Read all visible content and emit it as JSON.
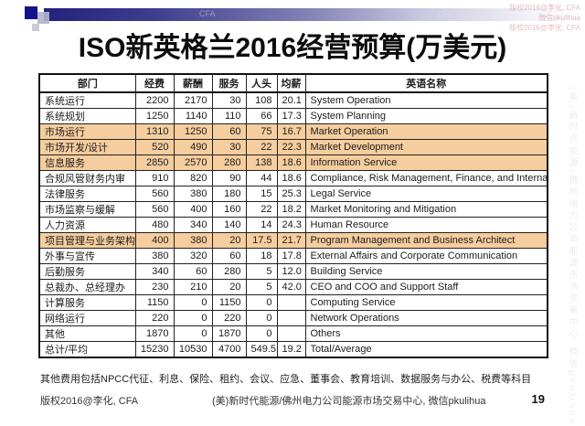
{
  "slide": {
    "title": "ISO新英格兰2016经营预算(万美元)",
    "footnote": "其他费用包括NPCC代征、利息、保险、租约、会议、应急、董事会、教育培训、数据服务与办公、税费等科目",
    "footer": {
      "copyright": "版权2016@李化, CFA",
      "center": "(美)新时代能源/佛州电力公司能源市场交易中心, 微信pkulihua",
      "page_number": "19"
    },
    "watermarks": {
      "top_right_lines": [
        "版权2016@李化, CFA",
        "微信pkulihua",
        "版权2016@李化, CFA"
      ],
      "bar_marks": [
        "CFA",
        "CFA"
      ],
      "side_vertical": "(美)新时代能源/佛州电力公司能源市场交易中心 微信pkulihua"
    },
    "colors": {
      "highlight_row": "#f6cd9e",
      "bar_navy": "#22227c",
      "square_navy": "#14148c",
      "table_border": "#111111"
    }
  },
  "table": {
    "headers": [
      "部门",
      "经费",
      "薪酬",
      "服务",
      "人头",
      "均薪",
      "英语名称"
    ],
    "columns": [
      {
        "key": "dept",
        "class": "dept",
        "name": "dept-cell"
      },
      {
        "key": "budget",
        "class": "num",
        "name": "budget-cell"
      },
      {
        "key": "salary",
        "class": "num",
        "name": "salary-cell"
      },
      {
        "key": "service",
        "class": "num",
        "name": "service-cell"
      },
      {
        "key": "headcount",
        "class": "num",
        "name": "headcount-cell"
      },
      {
        "key": "avg_salary",
        "class": "num",
        "name": "avg-salary-cell"
      },
      {
        "key": "english",
        "class": "en",
        "name": "english-name-cell"
      }
    ],
    "rows": [
      {
        "dept": "系统运行",
        "budget": "2200",
        "salary": "2170",
        "service": "30",
        "headcount": "108",
        "avg_salary": "20.1",
        "english": "System Operation",
        "highlight": false
      },
      {
        "dept": "系统规划",
        "budget": "1250",
        "salary": "1140",
        "service": "110",
        "headcount": "66",
        "avg_salary": "17.3",
        "english": "System Planning",
        "highlight": false
      },
      {
        "dept": "市场运行",
        "budget": "1310",
        "salary": "1250",
        "service": "60",
        "headcount": "75",
        "avg_salary": "16.7",
        "english": "Market Operation",
        "highlight": true
      },
      {
        "dept": "市场开发/设计",
        "budget": "520",
        "salary": "490",
        "service": "30",
        "headcount": "22",
        "avg_salary": "22.3",
        "english": "Market Development",
        "highlight": true
      },
      {
        "dept": "信息服务",
        "budget": "2850",
        "salary": "2570",
        "service": "280",
        "headcount": "138",
        "avg_salary": "18.6",
        "english": "Information Service",
        "highlight": true
      },
      {
        "dept": "合规风管财务内审",
        "budget": "910",
        "salary": "820",
        "service": "90",
        "headcount": "44",
        "avg_salary": "18.6",
        "english": "Compliance, Risk Management, Finance, and Internal Audit",
        "highlight": false
      },
      {
        "dept": "法律服务",
        "budget": "560",
        "salary": "380",
        "service": "180",
        "headcount": "15",
        "avg_salary": "25.3",
        "english": "Legal Service",
        "highlight": false
      },
      {
        "dept": "市场监察与缓解",
        "budget": "560",
        "salary": "400",
        "service": "160",
        "headcount": "22",
        "avg_salary": "18.2",
        "english": "Market Monitoring and Mitigation",
        "highlight": false
      },
      {
        "dept": "人力资源",
        "budget": "480",
        "salary": "340",
        "service": "140",
        "headcount": "14",
        "avg_salary": "24.3",
        "english": "Human Resource",
        "highlight": false
      },
      {
        "dept": "项目管理与业务架构",
        "budget": "400",
        "salary": "380",
        "service": "20",
        "headcount": "17.5",
        "avg_salary": "21.7",
        "english": "Program Management and Business Architect",
        "highlight": true
      },
      {
        "dept": "外事与宣传",
        "budget": "380",
        "salary": "320",
        "service": "60",
        "headcount": "18",
        "avg_salary": "17.8",
        "english": "External Affairs and Corporate Communication",
        "highlight": false
      },
      {
        "dept": "后勤服务",
        "budget": "340",
        "salary": "60",
        "service": "280",
        "headcount": "5",
        "avg_salary": "12.0",
        "english": "Building Service",
        "highlight": false
      },
      {
        "dept": "总裁办、总经理办",
        "budget": "230",
        "salary": "210",
        "service": "20",
        "headcount": "5",
        "avg_salary": "42.0",
        "english": "CEO and COO and Support Staff",
        "highlight": false
      },
      {
        "dept": "计算服务",
        "budget": "1150",
        "salary": "0",
        "service": "1150",
        "headcount": "0",
        "avg_salary": "",
        "english": "Computing Service",
        "highlight": false
      },
      {
        "dept": "网络运行",
        "budget": "220",
        "salary": "0",
        "service": "220",
        "headcount": "0",
        "avg_salary": "",
        "english": "Network Operations",
        "highlight": false
      },
      {
        "dept": "其他",
        "budget": "1870",
        "salary": "0",
        "service": "1870",
        "headcount": "0",
        "avg_salary": "",
        "english": "Others",
        "highlight": false
      },
      {
        "dept": "总计/平均",
        "budget": "15230",
        "salary": "10530",
        "service": "4700",
        "headcount": "549.5",
        "avg_salary": "19.2",
        "english": "Total/Average",
        "highlight": false
      }
    ]
  }
}
